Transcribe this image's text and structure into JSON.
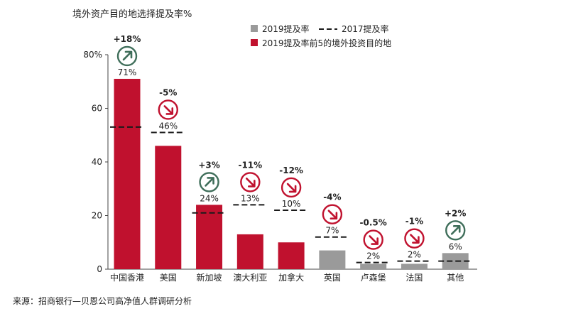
{
  "chart_data": {
    "type": "bar",
    "title": "境外资产目的地选择提及率%",
    "source": "来源：招商银行—贝恩公司高净值人群调研分析",
    "legend": {
      "placement": "top-right",
      "entries": {
        "gray_bar": "2019提及率",
        "dashed_line": "2017提及率",
        "red_bar": "2019提及率前5的境外投资目的地"
      }
    },
    "y_axis": {
      "ylim": [
        0,
        80
      ],
      "ticks": [
        0,
        20,
        40,
        60,
        80
      ],
      "tick_labels": [
        "0",
        "20",
        "40",
        "60",
        "80%"
      ]
    },
    "categories": [
      "中国香港",
      "美国",
      "新加坡",
      "澳大利亚",
      "加拿大",
      "英国",
      "卢森堡",
      "法国",
      "其他"
    ],
    "values_2019": [
      71,
      46,
      24,
      13,
      10,
      7,
      2,
      2,
      6
    ],
    "value_labels": [
      "71%",
      "46%",
      "24%",
      "13%",
      "10%",
      "7%",
      "2%",
      "2%",
      "6%"
    ],
    "values_2017": [
      53,
      51,
      21,
      24,
      22,
      12,
      2.5,
      3,
      3
    ],
    "change_labels": [
      "+18%",
      "-5%",
      "+3%",
      "-11%",
      "-12%",
      "-4%",
      "-0.5%",
      "-1%",
      "+2%"
    ],
    "change_direction": [
      "up",
      "down",
      "up",
      "down",
      "down",
      "down",
      "down",
      "down",
      "up"
    ],
    "top5": [
      true,
      true,
      true,
      true,
      true,
      false,
      false,
      false,
      false
    ],
    "colors": {
      "red": "#c0112e",
      "gray": "#9a9a9a",
      "up_circle": "#3f6e5a",
      "down_circle": "#c0112e",
      "text": "#222222",
      "axis": "#444444",
      "dash": "#1a1a1a"
    },
    "grid": false
  }
}
